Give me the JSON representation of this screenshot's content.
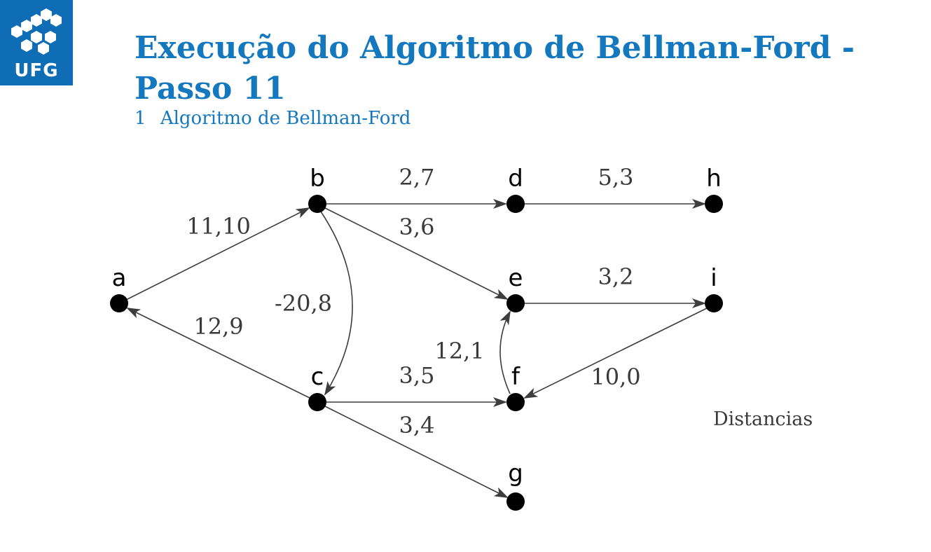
{
  "logo": {
    "text": "UFG",
    "color": "#0e6db5",
    "icon": "ufg-hexagon-logo"
  },
  "title": "Execução do Algoritmo de Bellman-Ford - Passo 11",
  "subtitle": {
    "number": "1",
    "text": "Algoritmo de Bellman-Ford"
  },
  "accent_color": "#1478be",
  "graph": {
    "nodes": [
      "a",
      "b",
      "c",
      "d",
      "e",
      "f",
      "g",
      "h",
      "i"
    ],
    "edges": [
      {
        "from": "a",
        "to": "b",
        "label": "11,10"
      },
      {
        "from": "b",
        "to": "d",
        "label": "2,7"
      },
      {
        "from": "d",
        "to": "h",
        "label": "5,3"
      },
      {
        "from": "b",
        "to": "e",
        "label": "3,6"
      },
      {
        "from": "b",
        "to": "c",
        "label": "-20,8"
      },
      {
        "from": "e",
        "to": "i",
        "label": "3,2"
      },
      {
        "from": "c",
        "to": "a",
        "label": "12,9"
      },
      {
        "from": "c",
        "to": "f",
        "label": "3,5"
      },
      {
        "from": "c",
        "to": "g",
        "label": "3,4"
      },
      {
        "from": "f",
        "to": "e",
        "label": "12,1"
      },
      {
        "from": "i",
        "to": "f",
        "label": "10,0"
      }
    ]
  },
  "distancias_label": "Distancias"
}
